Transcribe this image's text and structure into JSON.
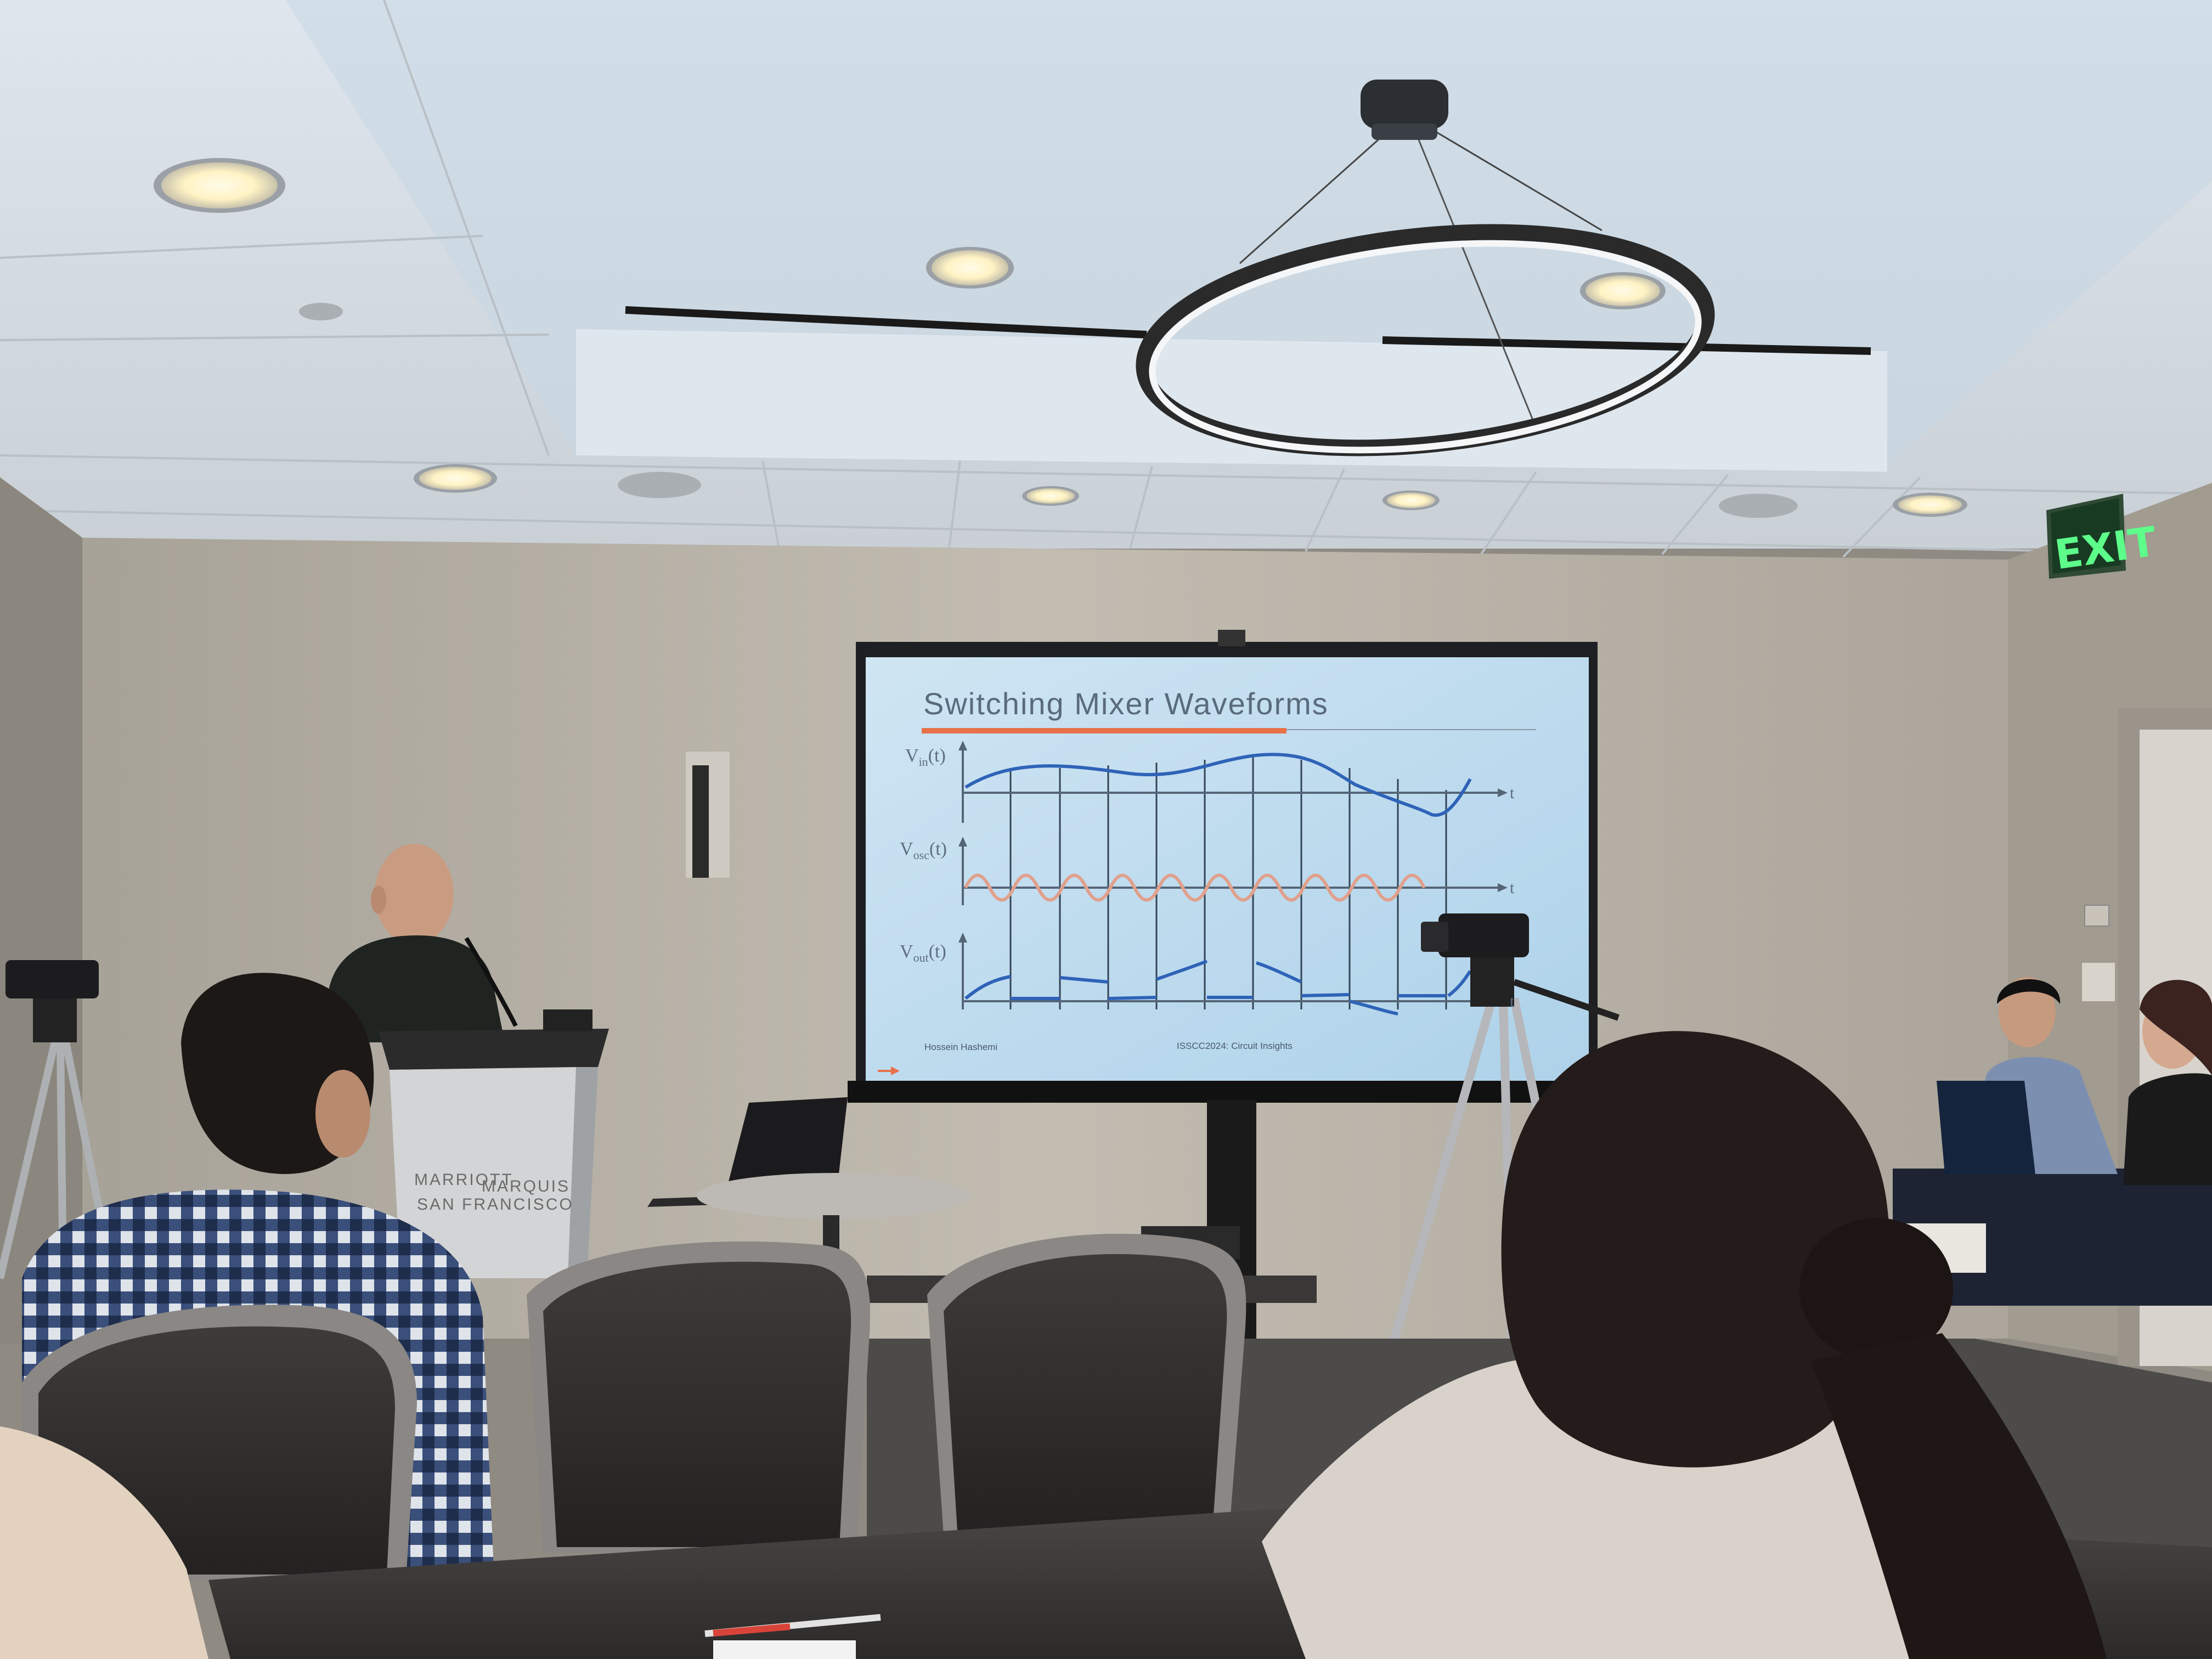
{
  "slide": {
    "title": "Switching Mixer Waveforms",
    "footer_left": "Hossein Hashemi",
    "footer_center": "ISSCC2024: Circuit Insights",
    "axis_t": "t",
    "vin_main": "V",
    "vin_sub": "in",
    "vin_arg": "(t)",
    "vosc_main": "V",
    "vosc_sub": "osc",
    "vosc_arg": "(t)",
    "vout_main": "V",
    "vout_sub": "out",
    "vout_arg": "(t)"
  },
  "exit_sign": {
    "text": "EXIT"
  },
  "podium": {
    "brand": "MARRIOTT",
    "brand2": "MARQUIS",
    "city": "SAN FRANCISCO"
  },
  "colors": {
    "ceiling": "#e6ebf0",
    "wall": "#b9b3a8",
    "screen": "#c4dced",
    "title_underline": "#e8714a",
    "vin_wave": "#2f63b8",
    "vosc_wave": "#e0a08c",
    "exit_green": "#5dff8a"
  }
}
